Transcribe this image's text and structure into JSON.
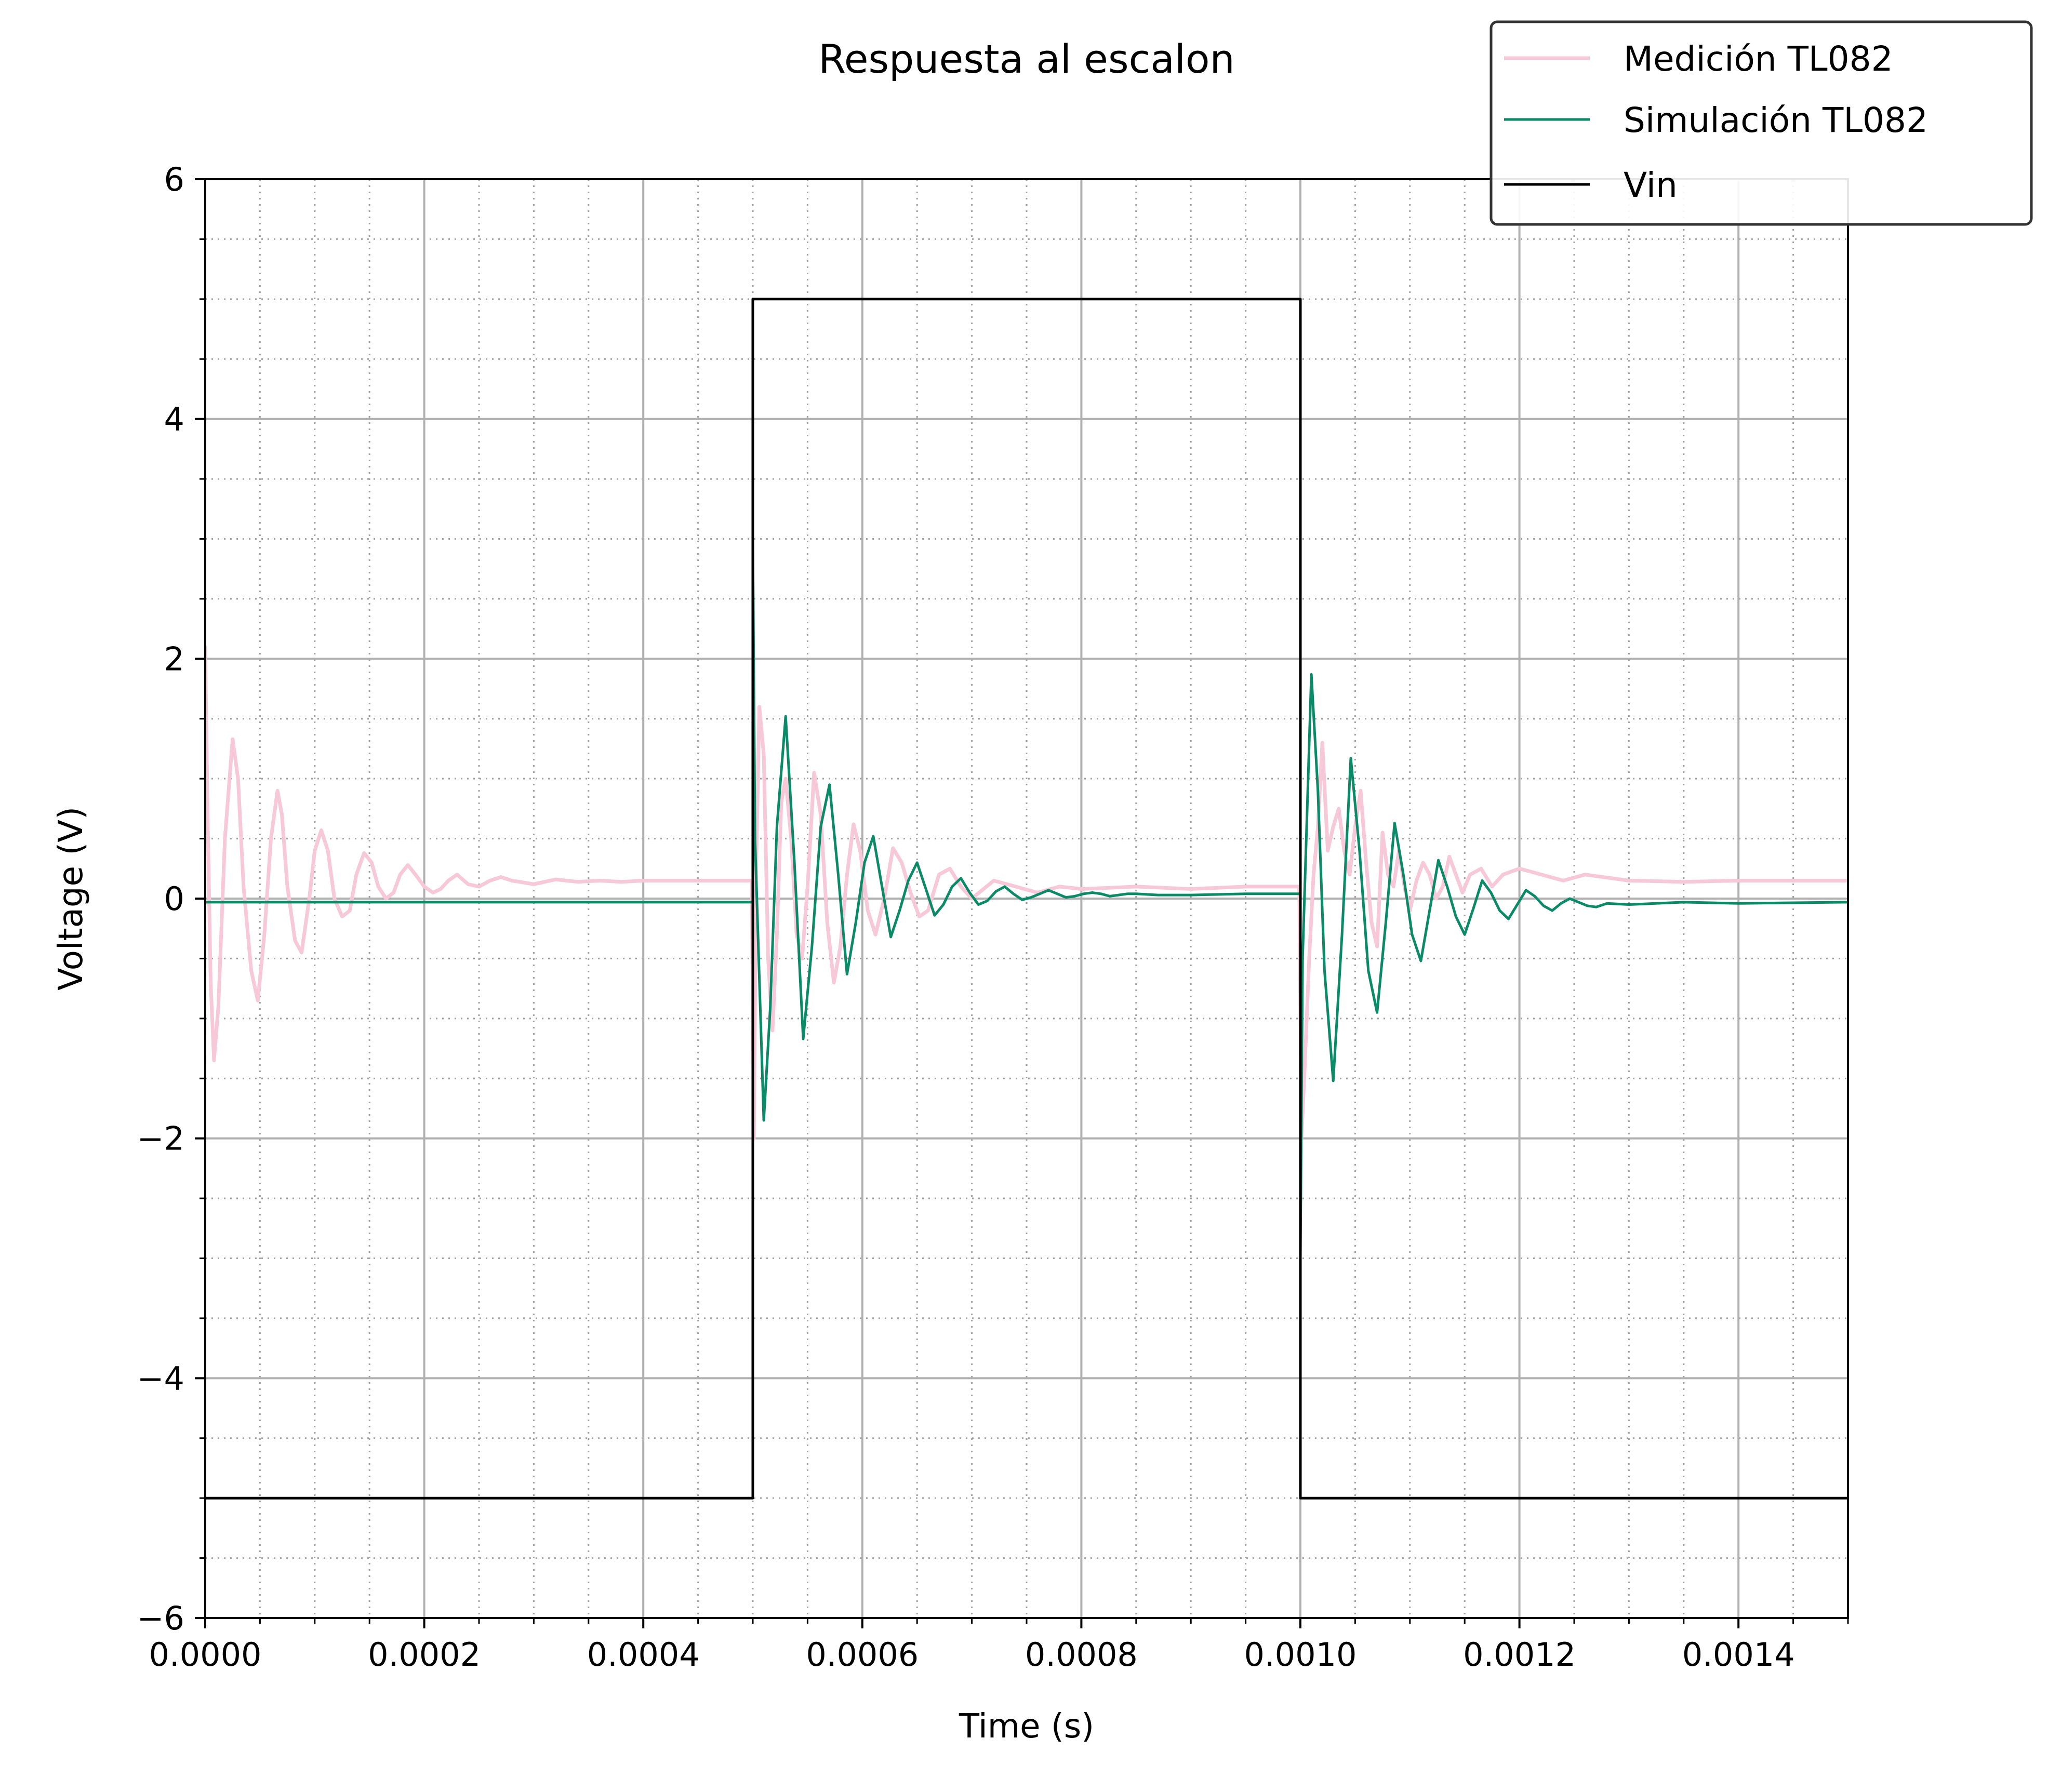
{
  "chart_data": {
    "type": "line",
    "title": "Respuesta al escalon",
    "xlabel": "Time (s)",
    "ylabel": "Voltage (V)",
    "xlim": [
      0,
      0.0015
    ],
    "ylim": [
      -6,
      6
    ],
    "xticks": [
      0,
      0.0002,
      0.0004,
      0.0006,
      0.0008,
      0.001,
      0.0012,
      0.0014
    ],
    "xtick_labels": [
      "0.0000",
      "0.0002",
      "0.0004",
      "0.0006",
      "0.0008",
      "0.0010",
      "0.0012",
      "0.0014"
    ],
    "yticks": [
      -6,
      -4,
      -2,
      0,
      2,
      4,
      6
    ],
    "ytick_labels": [
      "−6",
      "−4",
      "−2",
      "0",
      "2",
      "4",
      "6"
    ],
    "grid": true,
    "legend_position": "top-right",
    "series": [
      {
        "name": "Medición TL082",
        "color": "#f7c8d8",
        "x": [
          0.0,
          2e-06,
          5e-06,
          8e-06,
          1.2e-05,
          1.8e-05,
          2.5e-05,
          3e-05,
          3.5e-05,
          4.2e-05,
          4.8e-05,
          5.4e-05,
          6e-05,
          6.6e-05,
          7e-05,
          7.5e-05,
          8.2e-05,
          8.8e-05,
          9.5e-05,
          0.0001,
          0.000106,
          0.000112,
          0.000118,
          0.000125,
          0.000132,
          0.000138,
          0.000145,
          0.000152,
          0.000158,
          0.000165,
          0.000172,
          0.000178,
          0.000185,
          0.000192,
          0.0002,
          0.000208,
          0.000215,
          0.000222,
          0.00023,
          0.00024,
          0.00025,
          0.00026,
          0.00027,
          0.00028,
          0.0003,
          0.00032,
          0.00034,
          0.00036,
          0.00038,
          0.0004,
          0.00045,
          0.000499,
          0.000501,
          0.000503,
          0.000506,
          0.00051,
          0.000514,
          0.000518,
          0.000522,
          0.000526,
          0.00053,
          0.000535,
          0.00054,
          0.000545,
          0.00055,
          0.000556,
          0.000562,
          0.000568,
          0.000574,
          0.00058,
          0.000586,
          0.000592,
          0.000598,
          0.000605,
          0.000612,
          0.00062,
          0.000628,
          0.000636,
          0.000644,
          0.000652,
          0.00066,
          0.00067,
          0.00068,
          0.00069,
          0.0007,
          0.00072,
          0.00074,
          0.00076,
          0.00078,
          0.0008,
          0.00085,
          0.0009,
          0.00095,
          0.000999,
          0.001001,
          0.001004,
          0.001008,
          0.001012,
          0.001016,
          0.00102,
          0.001025,
          0.00103,
          0.001035,
          0.00104,
          0.001045,
          0.00105,
          0.001055,
          0.00106,
          0.001065,
          0.00107,
          0.001075,
          0.00108,
          0.001085,
          0.00109,
          0.001095,
          0.0011,
          0.001106,
          0.001112,
          0.001118,
          0.001124,
          0.00113,
          0.001136,
          0.001142,
          0.001148,
          0.001155,
          0.001165,
          0.001175,
          0.001185,
          0.0012,
          0.00122,
          0.00124,
          0.00126,
          0.0013,
          0.00135,
          0.0014,
          0.0015
        ],
        "y": [
          2.1,
          0.8,
          -0.7,
          -1.35,
          -0.9,
          0.5,
          1.33,
          1.0,
          0.1,
          -0.6,
          -0.85,
          -0.3,
          0.5,
          0.9,
          0.7,
          0.1,
          -0.35,
          -0.45,
          0.0,
          0.4,
          0.57,
          0.4,
          0.0,
          -0.15,
          -0.1,
          0.2,
          0.38,
          0.3,
          0.1,
          0.0,
          0.05,
          0.2,
          0.28,
          0.2,
          0.1,
          0.05,
          0.08,
          0.15,
          0.2,
          0.12,
          0.1,
          0.15,
          0.18,
          0.15,
          0.12,
          0.16,
          0.14,
          0.15,
          0.14,
          0.15,
          0.15,
          0.15,
          -2.0,
          0.2,
          1.6,
          1.2,
          -0.5,
          -1.1,
          -0.3,
          0.8,
          1.0,
          0.5,
          -0.3,
          -0.5,
          0.1,
          1.05,
          0.7,
          -0.2,
          -0.7,
          -0.4,
          0.2,
          0.62,
          0.4,
          -0.1,
          -0.3,
          0.0,
          0.42,
          0.3,
          0.05,
          -0.15,
          -0.1,
          0.2,
          0.25,
          0.1,
          0.0,
          0.15,
          0.1,
          0.05,
          0.1,
          0.08,
          0.1,
          0.08,
          0.1,
          0.1,
          -2.0,
          -1.4,
          -0.5,
          0.2,
          0.6,
          1.3,
          0.4,
          0.6,
          0.75,
          0.4,
          0.2,
          0.6,
          0.9,
          0.3,
          -0.2,
          -0.4,
          0.55,
          0.2,
          0.1,
          0.4,
          0.1,
          -0.1,
          0.15,
          0.3,
          0.2,
          0.0,
          0.1,
          0.35,
          0.2,
          0.05,
          0.2,
          0.25,
          0.1,
          0.2,
          0.25,
          0.2,
          0.15,
          0.2,
          0.15,
          0.14,
          0.15,
          0.15
        ]
      },
      {
        "name": "Simulación TL082",
        "color": "#0b8a68",
        "x": [
          0.0,
          0.0005,
          0.0005,
          0.000502,
          0.00051,
          0.000516,
          0.000522,
          0.00053,
          0.000538,
          0.000546,
          0.000554,
          0.000562,
          0.00057,
          0.000578,
          0.000586,
          0.000594,
          0.000602,
          0.00061,
          0.000618,
          0.000626,
          0.000634,
          0.000642,
          0.00065,
          0.000658,
          0.000666,
          0.000674,
          0.000682,
          0.00069,
          0.000698,
          0.000706,
          0.000714,
          0.000722,
          0.00073,
          0.000738,
          0.000746,
          0.000754,
          0.000762,
          0.00077,
          0.000778,
          0.000786,
          0.000794,
          0.000802,
          0.00081,
          0.000818,
          0.000826,
          0.000834,
          0.000842,
          0.00085,
          0.00087,
          0.0009,
          0.00095,
          0.001,
          0.001,
          0.001002,
          0.00101,
          0.001016,
          0.001022,
          0.00103,
          0.001038,
          0.001046,
          0.001054,
          0.001062,
          0.00107,
          0.001078,
          0.001086,
          0.001094,
          0.001102,
          0.00111,
          0.001118,
          0.001126,
          0.001134,
          0.001142,
          0.00115,
          0.001158,
          0.001166,
          0.001174,
          0.001182,
          0.00119,
          0.001198,
          0.001206,
          0.001214,
          0.001222,
          0.00123,
          0.001238,
          0.001246,
          0.001254,
          0.001262,
          0.00127,
          0.00128,
          0.0013,
          0.00135,
          0.0014,
          0.0015
        ],
        "y": [
          -0.03,
          -0.03,
          3.0,
          0.5,
          -1.85,
          -0.9,
          0.6,
          1.52,
          0.3,
          -1.17,
          -0.4,
          0.6,
          0.95,
          0.2,
          -0.63,
          -0.2,
          0.3,
          0.52,
          0.1,
          -0.32,
          -0.1,
          0.15,
          0.3,
          0.08,
          -0.14,
          -0.05,
          0.1,
          0.17,
          0.05,
          -0.05,
          -0.02,
          0.06,
          0.1,
          0.04,
          -0.01,
          0.01,
          0.04,
          0.07,
          0.04,
          0.01,
          0.02,
          0.04,
          0.05,
          0.04,
          0.02,
          0.03,
          0.04,
          0.04,
          0.03,
          0.03,
          0.04,
          0.04,
          -3.0,
          -0.5,
          1.87,
          0.9,
          -0.6,
          -1.52,
          -0.3,
          1.17,
          0.4,
          -0.6,
          -0.95,
          -0.2,
          0.63,
          0.2,
          -0.3,
          -0.52,
          -0.1,
          0.32,
          0.1,
          -0.15,
          -0.3,
          -0.08,
          0.15,
          0.05,
          -0.1,
          -0.17,
          -0.05,
          0.07,
          0.02,
          -0.06,
          -0.1,
          -0.04,
          0.0,
          -0.03,
          -0.06,
          -0.07,
          -0.04,
          -0.05,
          -0.03,
          -0.04,
          -0.03
        ]
      },
      {
        "name": "Vin",
        "color": "#000000",
        "x": [
          0.0,
          0.0005,
          0.0005,
          0.001,
          0.001,
          0.0015
        ],
        "y": [
          -5,
          -5,
          5,
          5,
          -5,
          -5
        ]
      }
    ]
  }
}
